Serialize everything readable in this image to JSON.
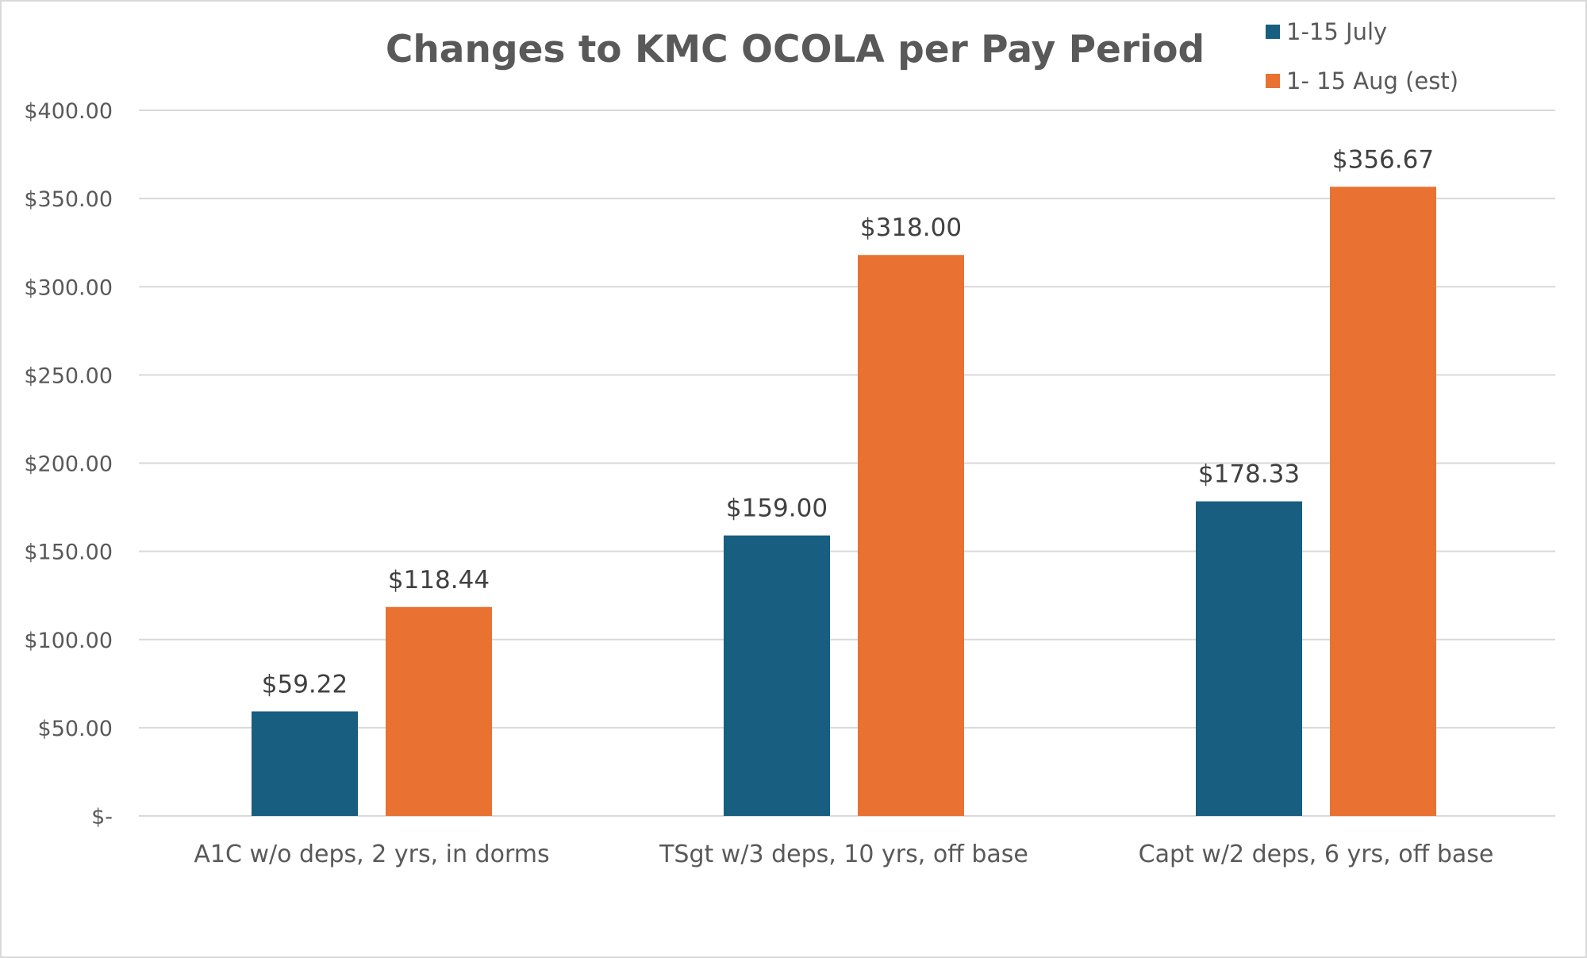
{
  "chart_data": {
    "type": "bar",
    "title": "Changes to KMC OCOLA per Pay Period",
    "xlabel": "",
    "ylabel": "",
    "ylim": [
      0,
      400
    ],
    "grid": true,
    "legend_position": "top-right",
    "categories": [
      "A1C w/o deps, 2 yrs, in dorms",
      "TSgt w/3 deps, 10 yrs, off base",
      "Capt w/2 deps, 6 yrs, off base"
    ],
    "series": [
      {
        "name": "1-15 July",
        "color": "#175e80",
        "values": [
          59.22,
          159.0,
          178.33
        ],
        "data_labels": [
          "$59.22",
          "$159.00",
          "$178.33"
        ]
      },
      {
        "name": "1- 15 Aug (est)",
        "color": "#e97132",
        "values": [
          118.44,
          318.0,
          356.67
        ],
        "data_labels": [
          "$118.44",
          "$318.00",
          "$356.67"
        ]
      }
    ],
    "y_ticks": [
      {
        "value": 0,
        "label": "$-"
      },
      {
        "value": 50,
        "label": "$50.00"
      },
      {
        "value": 100,
        "label": "$100.00"
      },
      {
        "value": 150,
        "label": "$150.00"
      },
      {
        "value": 200,
        "label": "$200.00"
      },
      {
        "value": 250,
        "label": "$250.00"
      },
      {
        "value": 300,
        "label": "$300.00"
      },
      {
        "value": 350,
        "label": "$350.00"
      },
      {
        "value": 400,
        "label": "$400.00"
      }
    ]
  }
}
